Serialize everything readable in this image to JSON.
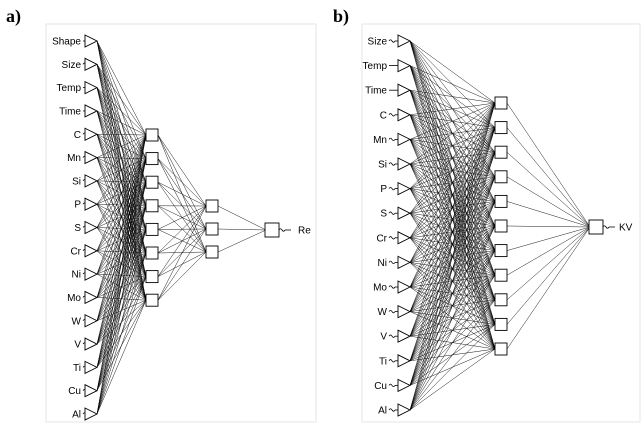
{
  "panels": [
    {
      "id": "a",
      "label": "a)",
      "inputs": [
        {
          "name": "Shape",
          "marker": "dash"
        },
        {
          "name": "Size",
          "marker": "wave"
        },
        {
          "name": "Temp",
          "marker": "dash"
        },
        {
          "name": "Time",
          "marker": "dash"
        },
        {
          "name": "C",
          "marker": "wave"
        },
        {
          "name": "Mn",
          "marker": "wave"
        },
        {
          "name": "Si",
          "marker": "wave"
        },
        {
          "name": "P",
          "marker": "wave"
        },
        {
          "name": "S",
          "marker": "wave"
        },
        {
          "name": "Cr",
          "marker": "wave"
        },
        {
          "name": "Ni",
          "marker": "wave"
        },
        {
          "name": "Mo",
          "marker": "wave"
        },
        {
          "name": "W",
          "marker": "wave"
        },
        {
          "name": "V",
          "marker": "wave"
        },
        {
          "name": "Ti",
          "marker": "wave"
        },
        {
          "name": "Cu",
          "marker": "wave"
        },
        {
          "name": "Al",
          "marker": "wave"
        }
      ],
      "hidden_layers": [
        8,
        3
      ],
      "outputs": [
        {
          "name": "Re"
        }
      ]
    },
    {
      "id": "b",
      "label": "b)",
      "inputs": [
        {
          "name": "Size",
          "marker": "wave"
        },
        {
          "name": "Temp",
          "marker": "dash"
        },
        {
          "name": "Time",
          "marker": "dash"
        },
        {
          "name": "C",
          "marker": "wave"
        },
        {
          "name": "Mn",
          "marker": "wave"
        },
        {
          "name": "Si",
          "marker": "wave"
        },
        {
          "name": "P",
          "marker": "wave"
        },
        {
          "name": "S",
          "marker": "wave"
        },
        {
          "name": "Cr",
          "marker": "wave"
        },
        {
          "name": "Ni",
          "marker": "wave"
        },
        {
          "name": "Mo",
          "marker": "wave"
        },
        {
          "name": "W",
          "marker": "wave"
        },
        {
          "name": "V",
          "marker": "wave"
        },
        {
          "name": "Ti",
          "marker": "wave"
        },
        {
          "name": "Cu",
          "marker": "wave"
        },
        {
          "name": "Al",
          "marker": "wave"
        }
      ],
      "hidden_layers": [
        11
      ],
      "outputs": [
        {
          "name": "KV"
        }
      ]
    }
  ]
}
